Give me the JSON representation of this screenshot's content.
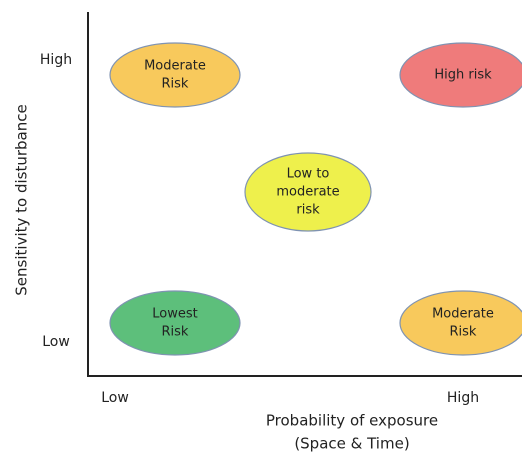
{
  "axes": {
    "y_title": "Sensitivity to disturbance",
    "y_high": "High",
    "y_low": "Low",
    "x_low": "Low",
    "x_high": "High",
    "x_title": [
      "Probability of exposure",
      "(Space & Time)"
    ]
  },
  "nodes": [
    {
      "lines": [
        "Moderate",
        "Risk"
      ]
    },
    {
      "lines": [
        "High risk"
      ]
    },
    {
      "lines": [
        "Low to",
        "moderate",
        "risk"
      ]
    },
    {
      "lines": [
        "Lowest",
        "Risk"
      ]
    },
    {
      "lines": [
        "Moderate",
        "Risk"
      ]
    }
  ]
}
